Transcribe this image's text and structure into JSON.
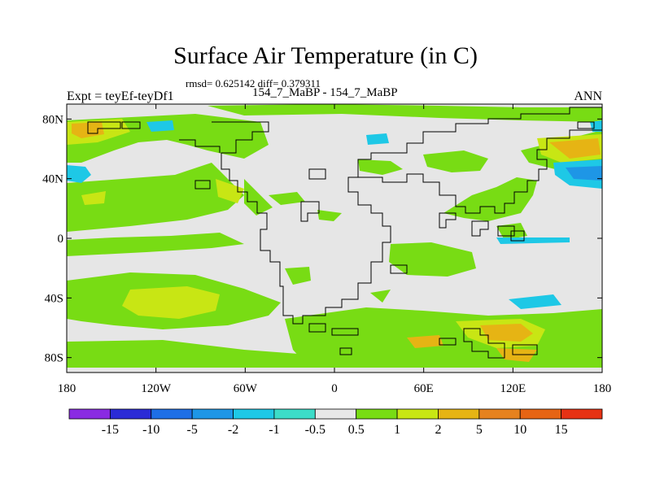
{
  "title": "Surface Air Temperature (in C)",
  "stats_line": "rmsd= 0.625142 diff= 0.379311",
  "subtitle": "154_7_MaBP - 154_7_MaBP",
  "left_label": "Expt = teyEf-teyDf1",
  "right_label": "ANN",
  "map": {
    "y_ticks": [
      {
        "value": 80,
        "label": "80N"
      },
      {
        "value": 40,
        "label": "40N"
      },
      {
        "value": 0,
        "label": "0"
      },
      {
        "value": -40,
        "label": "40S"
      },
      {
        "value": -80,
        "label": "80S"
      }
    ],
    "x_ticks": [
      {
        "value": -180,
        "label": "180"
      },
      {
        "value": -120,
        "label": "120W"
      },
      {
        "value": -60,
        "label": "60W"
      },
      {
        "value": 0,
        "label": "0"
      },
      {
        "value": 60,
        "label": "60E"
      },
      {
        "value": 120,
        "label": "120E"
      },
      {
        "value": 180,
        "label": "180"
      }
    ]
  },
  "colorbar": {
    "labels": [
      "-15",
      "-10",
      "-5",
      "-2",
      "-1",
      "-0.5",
      "0.5",
      "1",
      "2",
      "5",
      "10",
      "15"
    ],
    "colors": [
      "#8a2be2",
      "#2b2bd6",
      "#1e6fe6",
      "#1e96e6",
      "#1ec8e6",
      "#3cdcc8",
      "#e8e8e8",
      "#78dc14",
      "#c8e614",
      "#e6b414",
      "#e6821e",
      "#e66414",
      "#e63214"
    ]
  }
}
